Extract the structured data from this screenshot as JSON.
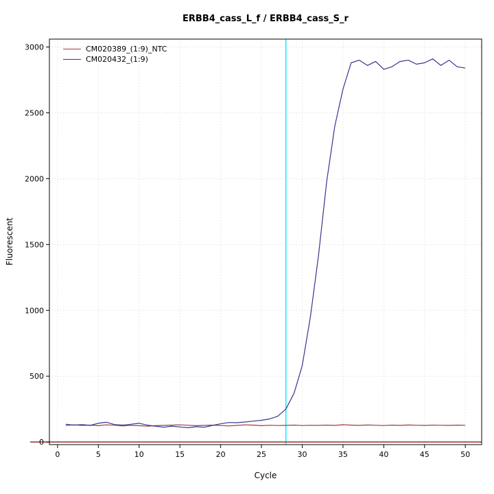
{
  "chart_data": {
    "type": "line",
    "title": "ERBB4_cass_L_f / ERBB4_cass_S_r",
    "xlabel": "Cycle",
    "ylabel": "Fluorescent",
    "xlim": [
      -1,
      52
    ],
    "ylim": [
      -20,
      3060
    ],
    "xticks": [
      0,
      5,
      10,
      15,
      20,
      25,
      30,
      35,
      40,
      45,
      50
    ],
    "yticks": [
      0,
      500,
      1000,
      1500,
      2000,
      2500,
      3000
    ],
    "grid": true,
    "legend_position": "top-left",
    "x": [
      1,
      2,
      3,
      4,
      5,
      6,
      7,
      8,
      9,
      10,
      11,
      12,
      13,
      14,
      15,
      16,
      17,
      18,
      19,
      20,
      21,
      22,
      23,
      24,
      25,
      26,
      27,
      28,
      29,
      30,
      31,
      32,
      33,
      34,
      35,
      36,
      37,
      38,
      39,
      40,
      41,
      42,
      43,
      44,
      45,
      46,
      47,
      48,
      49,
      50
    ],
    "series": [
      {
        "name": "CM020389_(1:9)_NTC",
        "color": "#a03a3a",
        "values": [
          125,
          130,
          126,
          128,
          124,
          130,
          127,
          122,
          126,
          124,
          120,
          124,
          126,
          128,
          130,
          127,
          124,
          126,
          128,
          125,
          122,
          126,
          130,
          128,
          124,
          127,
          125,
          126,
          128,
          125,
          127,
          126,
          128,
          126,
          131,
          128,
          126,
          129,
          127,
          125,
          128,
          126,
          129,
          127,
          126,
          128,
          127,
          126,
          128,
          127
        ]
      },
      {
        "name": "CM020432_(1:9)",
        "color": "#34348f",
        "values": [
          135,
          128,
          132,
          126,
          142,
          150,
          132,
          128,
          135,
          142,
          128,
          120,
          112,
          120,
          114,
          108,
          116,
          112,
          126,
          138,
          148,
          146,
          152,
          158,
          165,
          175,
          195,
          250,
          370,
          580,
          950,
          1420,
          1980,
          2400,
          2680,
          2880,
          2900,
          2860,
          2890,
          2830,
          2850,
          2890,
          2900,
          2870,
          2880,
          2910,
          2860,
          2900,
          2850,
          2840
        ]
      }
    ],
    "ct_line": {
      "x": 28,
      "color": "#00eaff"
    },
    "baseline_line": {
      "y": 0,
      "color": "#8b1a1a"
    }
  }
}
